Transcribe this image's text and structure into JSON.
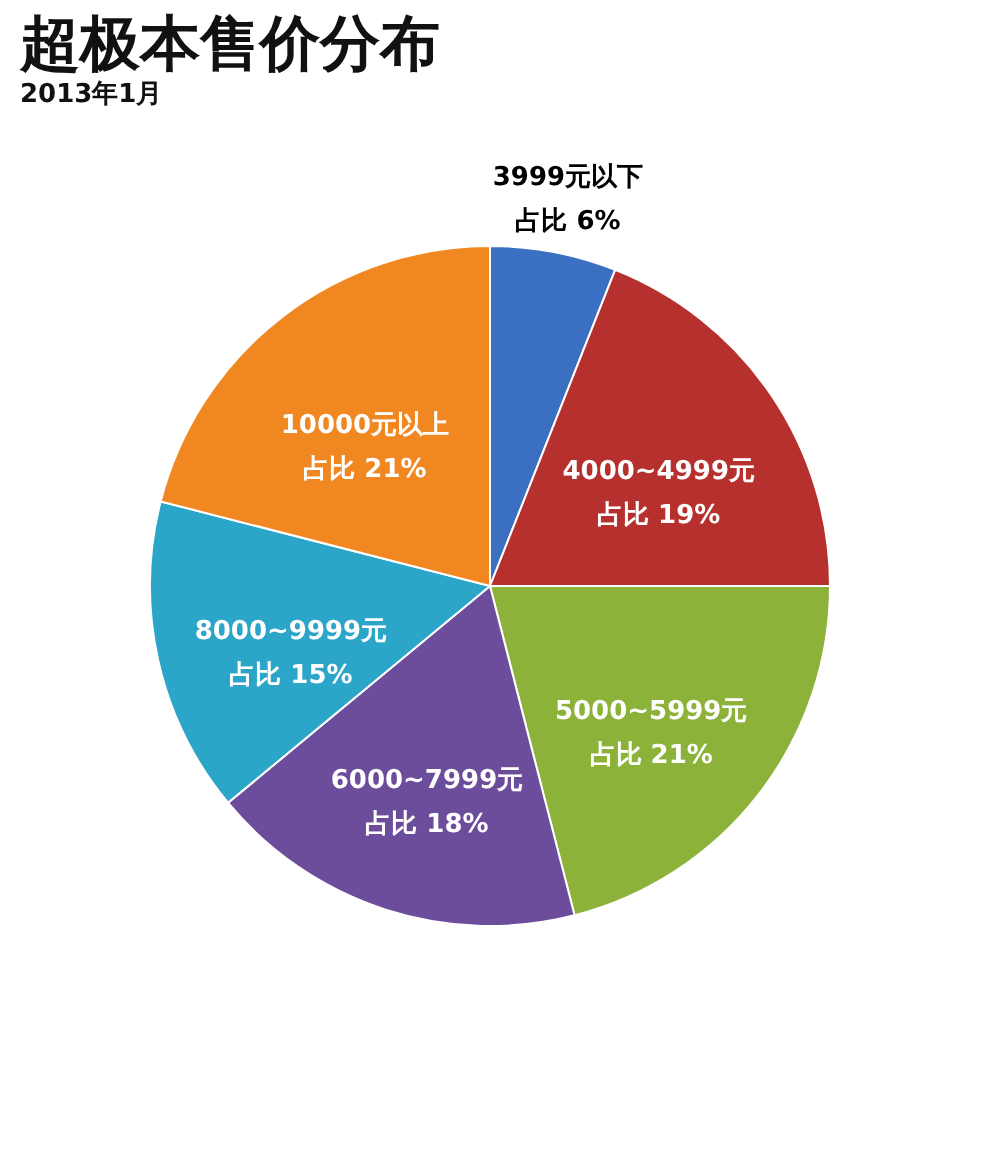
{
  "chart_data": {
    "type": "pie",
    "title": "超极本售价分布",
    "subtitle": "2013年1月",
    "categories": [
      "3999元以下",
      "4000~4999元",
      "5000~5999元",
      "6000~7999元",
      "8000~9999元",
      "10000元以上"
    ],
    "values": [
      6,
      19,
      21,
      18,
      15,
      21
    ],
    "value_labels": [
      "占比 6%",
      "占比 19%",
      "占比 21%",
      "占比 18%",
      "占比 15%",
      "占比 21%"
    ],
    "colors": [
      "#3b6fc2",
      "#b6302e",
      "#8cb23a",
      "#6b4d9c",
      "#2ba5c8",
      "#f08720"
    ]
  }
}
